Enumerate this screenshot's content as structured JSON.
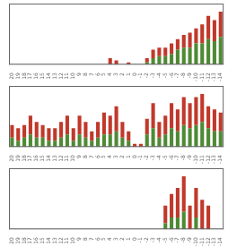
{
  "chart_data": [
    {
      "type": "bar",
      "stacked": true,
      "grid": false,
      "tick_labels": "x",
      "categories": [
        "20",
        "19",
        "18",
        "17",
        "16",
        "15",
        "14",
        "13",
        "12",
        "11",
        "10",
        "9",
        "8",
        "7",
        "6",
        "5",
        "4",
        "3",
        "2",
        "1",
        "0",
        "-1",
        "-2",
        "-3",
        "-4",
        "-5",
        "-6",
        "-7",
        "-8",
        "-9",
        "-10",
        "-11",
        "-12",
        "-13",
        "-14"
      ],
      "series": [
        {
          "color": "#4e8a34",
          "values": [
            0,
            0,
            0,
            0,
            0,
            0,
            0,
            0,
            0,
            0,
            0,
            0,
            0,
            0,
            0,
            0,
            0,
            0,
            0,
            0,
            0,
            0,
            1,
            3,
            4,
            4,
            5,
            7,
            8,
            8,
            10,
            10,
            12,
            11,
            13
          ]
        },
        {
          "color": "#c0392b",
          "values": [
            0,
            0,
            0,
            0,
            0,
            0,
            0,
            0,
            0,
            0,
            0,
            0,
            0,
            0,
            0,
            0,
            3,
            2,
            0,
            1,
            0,
            0,
            2,
            4,
            4,
            4,
            5,
            5,
            6,
            7,
            7,
            9,
            11,
            10,
            12
          ]
        }
      ],
      "ylim": [
        0,
        28.75
      ]
    },
    {
      "type": "bar",
      "stacked": true,
      "grid": false,
      "tick_labels": "x",
      "categories": [
        "20",
        "19",
        "18",
        "17",
        "16",
        "15",
        "14",
        "13",
        "12",
        "11",
        "10",
        "9",
        "8",
        "7",
        "6",
        "5",
        "4",
        "3",
        "2",
        "1",
        "0",
        "-1",
        "-2",
        "-3",
        "-4",
        "-5",
        "-6",
        "-7",
        "-8",
        "-9",
        "-10",
        "-11",
        "-12",
        "-13",
        "-14"
      ],
      "series": [
        {
          "color": "#4e8a34",
          "values": [
            3,
            2,
            3,
            4,
            3,
            3,
            2,
            2,
            3,
            4,
            2,
            4,
            3,
            2,
            3,
            4,
            4,
            5,
            3,
            2,
            0,
            0,
            4,
            6,
            3,
            4,
            6,
            5,
            7,
            6,
            7,
            8,
            6,
            5,
            5
          ]
        },
        {
          "color": "#c0392b",
          "values": [
            4,
            4,
            4,
            6,
            5,
            4,
            4,
            4,
            5,
            6,
            4,
            6,
            5,
            3,
            5,
            7,
            6,
            8,
            5,
            3,
            1,
            1,
            5,
            8,
            5,
            6,
            8,
            7,
            9,
            8,
            9,
            9,
            7,
            7,
            6
          ]
        }
      ],
      "ylim": [
        0,
        19.55
      ]
    },
    {
      "type": "bar",
      "stacked": true,
      "grid": false,
      "tick_labels": "x",
      "categories": [
        "20",
        "19",
        "18",
        "17",
        "16",
        "15",
        "14",
        "13",
        "12",
        "11",
        "10",
        "9",
        "8",
        "7",
        "6",
        "5",
        "4",
        "3",
        "2",
        "1",
        "0",
        "-1",
        "-2",
        "-3",
        "-4",
        "-5",
        "-6",
        "-7",
        "-8",
        "-9",
        "-10",
        "-11",
        "-12",
        "-13",
        "-14"
      ],
      "series": [
        {
          "color": "#4e8a34",
          "values": [
            0,
            0,
            0,
            0,
            0,
            0,
            0,
            0,
            0,
            0,
            0,
            0,
            0,
            0,
            0,
            0,
            0,
            0,
            0,
            0,
            0,
            0,
            0,
            0,
            0,
            1,
            2,
            2,
            3,
            0,
            2,
            0,
            0,
            0,
            0
          ]
        },
        {
          "color": "#c0392b",
          "values": [
            0,
            0,
            0,
            0,
            0,
            0,
            0,
            0,
            0,
            0,
            0,
            0,
            0,
            0,
            0,
            0,
            0,
            0,
            0,
            0,
            0,
            0,
            0,
            0,
            0,
            3,
            4,
            5,
            6,
            4,
            5,
            5,
            4,
            0,
            0
          ]
        }
      ],
      "ylim": [
        0,
        10.35
      ]
    }
  ]
}
